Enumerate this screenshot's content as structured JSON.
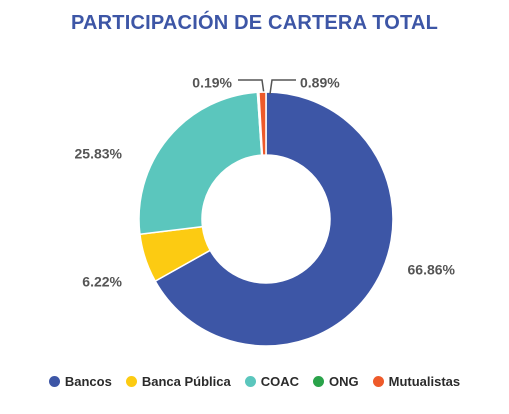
{
  "chart_data": {
    "type": "pie",
    "variant": "donut",
    "title": "PARTICIPACIÓN DE CARTERA TOTAL",
    "legend_position": "bottom",
    "series": [
      {
        "name": "Bancos",
        "value": 66.86,
        "label": "66.86%",
        "color": "#3d56a6"
      },
      {
        "name": "Banca Pública",
        "value": 6.22,
        "label": "6.22%",
        "color": "#fccb12"
      },
      {
        "name": "COAC",
        "value": 25.83,
        "label": "25.83%",
        "color": "#5bc6bd"
      },
      {
        "name": "ONG",
        "value": 0.19,
        "label": "0.19%",
        "color": "#2aa34a"
      },
      {
        "name": "Mutualistas",
        "value": 0.89,
        "label": "0.89%",
        "color": "#ee5a2a"
      }
    ]
  }
}
